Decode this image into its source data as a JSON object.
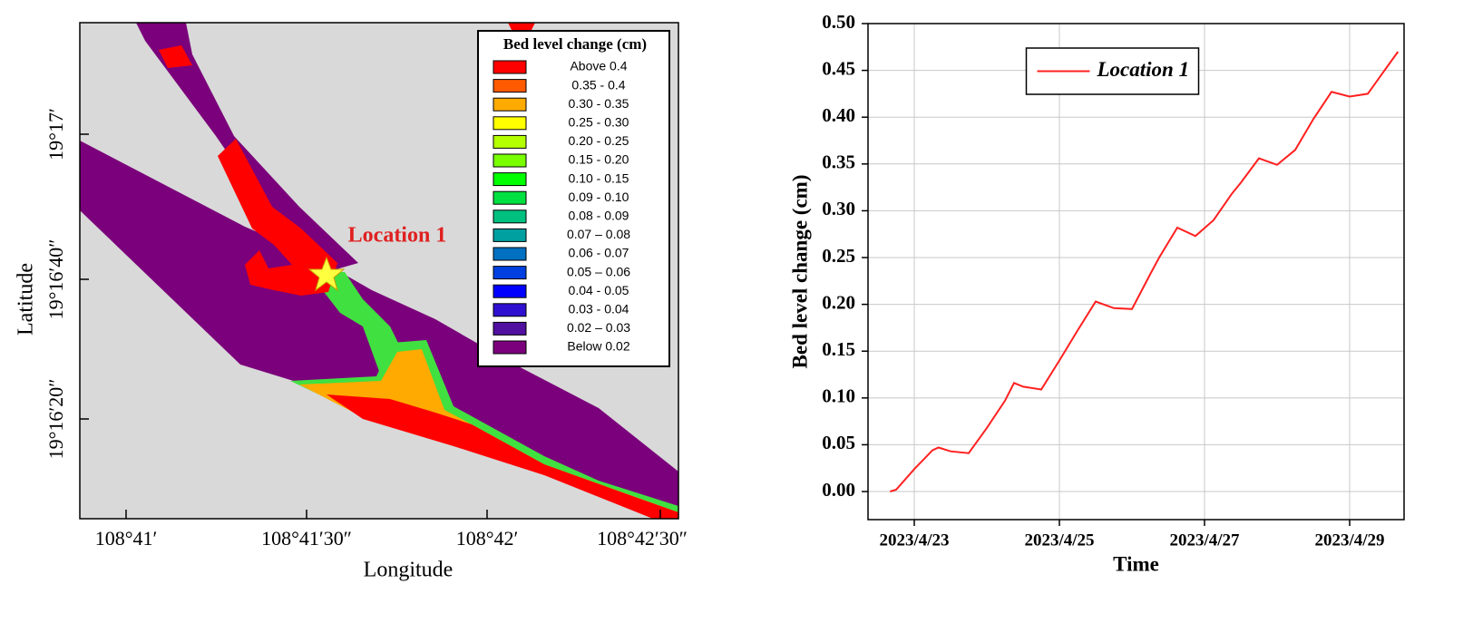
{
  "map": {
    "xlabel": "Longitude",
    "ylabel": "Latitude",
    "xticks": [
      "108°41′",
      "108°41′30″",
      "108°42′",
      "108°42′30″"
    ],
    "yticks": [
      "19°17′",
      "19°16′40″",
      "19°16′20″"
    ],
    "annotation": "Location 1",
    "legend": {
      "title": "Bed level change (cm)",
      "items": [
        {
          "label": "Above 0.4",
          "color": "#ff0000"
        },
        {
          "label": "0.35 - 0.4",
          "color": "#ff5a00"
        },
        {
          "label": "0.30 - 0.35",
          "color": "#ffaa00"
        },
        {
          "label": "0.25 - 0.30",
          "color": "#ffff00"
        },
        {
          "label": "0.20 - 0.25",
          "color": "#b4ff00"
        },
        {
          "label": "0.15 - 0.20",
          "color": "#78ff00"
        },
        {
          "label": "0.10 - 0.15",
          "color": "#00ff00"
        },
        {
          "label": "0.09 - 0.10",
          "color": "#00e040"
        },
        {
          "label": "0.08 - 0.09",
          "color": "#00c080"
        },
        {
          "label": "0.07 – 0.08",
          "color": "#00a0a0"
        },
        {
          "label": "0.06 - 0.07",
          "color": "#0070c0"
        },
        {
          "label": "0.05 – 0.06",
          "color": "#0040e0"
        },
        {
          "label": "0.04 - 0.05",
          "color": "#0000ff"
        },
        {
          "label": "0.03 - 0.04",
          "color": "#3010d0"
        },
        {
          "label": "0.02 – 0.03",
          "color": "#5010a0"
        },
        {
          "label": "Below 0.02",
          "color": "#7b007b"
        }
      ]
    }
  },
  "chart_data": {
    "type": "line",
    "xlabel": "Time",
    "ylabel": "Bed level change (cm)",
    "x": [
      "2023-04-22T16:00",
      "2023-04-22T18:00",
      "2023-04-23T00:00",
      "2023-04-23T06:00",
      "2023-04-23T08:00",
      "2023-04-23T12:00",
      "2023-04-23T18:00",
      "2023-04-24T00:00",
      "2023-04-24T06:00",
      "2023-04-24T09:00",
      "2023-04-24T12:00",
      "2023-04-24T18:00",
      "2023-04-25T00:00",
      "2023-04-25T06:00",
      "2023-04-25T12:00",
      "2023-04-25T18:00",
      "2023-04-26T00:00",
      "2023-04-26T06:00",
      "2023-04-26T09:00",
      "2023-04-26T15:00",
      "2023-04-26T21:00",
      "2023-04-27T03:00",
      "2023-04-27T09:00",
      "2023-04-27T12:00",
      "2023-04-27T18:00",
      "2023-04-28T00:00",
      "2023-04-28T06:00",
      "2023-04-28T12:00",
      "2023-04-28T18:00",
      "2023-04-29T00:00",
      "2023-04-29T06:00",
      "2023-04-29T12:00",
      "2023-04-29T16:00"
    ],
    "series": [
      {
        "name": "Location 1",
        "color": "#ff2020",
        "values": [
          0.0,
          0.002,
          0.024,
          0.044,
          0.047,
          0.043,
          0.041,
          0.068,
          0.097,
          0.116,
          0.112,
          0.109,
          0.14,
          0.172,
          0.203,
          0.196,
          0.195,
          0.232,
          0.25,
          0.282,
          0.273,
          0.29,
          0.318,
          0.33,
          0.356,
          0.349,
          0.365,
          0.398,
          0.427,
          0.422,
          0.425,
          0.452,
          0.47
        ]
      }
    ],
    "xlim": [
      "2023-04-22T08:42",
      "2023-04-29T18:00"
    ],
    "xticks": [
      {
        "value": "2023-04-23T00:00",
        "label": "2023/4/23"
      },
      {
        "value": "2023-04-25T00:00",
        "label": "2023/4/25"
      },
      {
        "value": "2023-04-27T00:00",
        "label": "2023/4/27"
      },
      {
        "value": "2023-04-29T00:00",
        "label": "2023/4/29"
      }
    ],
    "ylim": [
      -0.03,
      0.5
    ],
    "yticks": [
      {
        "value": 0,
        "label": "0.00"
      },
      {
        "value": 0.05,
        "label": "0.05"
      },
      {
        "value": 0.1,
        "label": "0.10"
      },
      {
        "value": 0.15,
        "label": "0.15"
      },
      {
        "value": 0.2,
        "label": "0.20"
      },
      {
        "value": 0.25,
        "label": "0.25"
      },
      {
        "value": 0.3,
        "label": "0.30"
      },
      {
        "value": 0.35,
        "label": "0.35"
      },
      {
        "value": 0.4,
        "label": "0.40"
      },
      {
        "value": 0.45,
        "label": "0.45"
      },
      {
        "value": 0.5,
        "label": "0.50"
      }
    ],
    "grid": true,
    "legend": "upper center"
  }
}
